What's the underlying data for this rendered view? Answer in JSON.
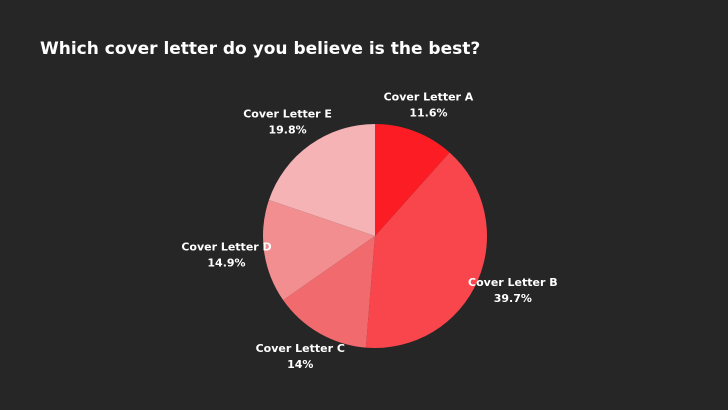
{
  "chart_data": {
    "type": "pie",
    "title": "Which cover letter do you believe is the best?",
    "categories": [
      "Cover Letter A",
      "Cover Letter B",
      "Cover Letter C",
      "Cover Letter D",
      "Cover Letter E"
    ],
    "values": [
      11.6,
      39.7,
      14,
      14.9,
      19.8
    ],
    "value_labels": [
      "11.6%",
      "39.7%",
      "14%",
      "14.9%",
      "19.8%"
    ],
    "colors": [
      "#fc1c24",
      "#f9464c",
      "#f06a6e",
      "#f38e90",
      "#f5b3b5"
    ]
  }
}
